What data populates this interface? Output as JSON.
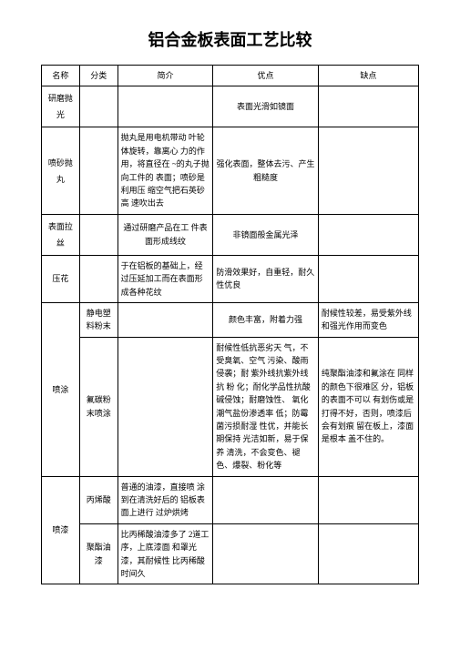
{
  "title": "铝合金板表面工艺比较",
  "headers": {
    "name": "名称",
    "category": "分类",
    "intro": "简介",
    "pros": "优点",
    "cons": "缺点"
  },
  "rows": {
    "r1_name": "研磨抛光",
    "r1_pros": "表面光滑如镜面",
    "r2_name": "喷砂抛丸",
    "r2_intro": "抛丸是用电机带动 叶轮体旋转，靠离心 力的作用，将直径在 ~的丸子抛向工件的 表面；喷砂是利用压 缩空气把石英砂高 速吹出去",
    "r2_pros": "强化表面，整体去污、产生粗糙度",
    "r3_name": "表面拉丝",
    "r3_intro": "通过研磨产品在工 件表面形成线纹",
    "r3_pros": "非镜面般金属光泽",
    "r4_name": "压花",
    "r4_intro": "于在铝板的基础上，经过压延加工而在表面形成各种花纹",
    "r4_pros": "防滑效果好，自重轻，耐久性优良",
    "r5_name": "喷涂",
    "r5_cat": "静电塑料粉末",
    "r5_pros": "颜色丰富，附着力强",
    "r5_cons": "耐候性较差，易受紫外线和强光作用而变色",
    "r6_cat": "氟碳粉末喷涂",
    "r6_pros": "耐候性低抗恶劣天 气，不受臭氧、空气 污染、酸雨侵袭；耐 紫外线抗紫外线抗 粉 化；耐化学品性抗酸 碱侵蚀；耐磨蚀性、 氧化潮气盐份渗透率 低；防霉菌污损耐湿 性优，并能长期保持 光洁如新，易于保 养 清洗，不会变色、褪 色、爆裂、粉化等",
    "r6_cons": "纯聚酯油漆和氟涂在 同样的颜色下很难区 分，铝板的表面不可以 有划伤或是打得不好，否则，喷漆后会有划痕 留在板上，漆面是根本 盖不住的。",
    "r7_name": "喷漆",
    "r7_cat": "丙烯酸",
    "r7_intro": "普通的油漆，直接喷 涂到在清洗好后的 铝板表面上进行 过炉烘烤",
    "r8_cat": "聚酯油漆",
    "r8_intro": "比丙稀酸油漆多了 2道工序，上底漆面 和罩光漆，其耐候性 比丙稀酸时间久"
  }
}
